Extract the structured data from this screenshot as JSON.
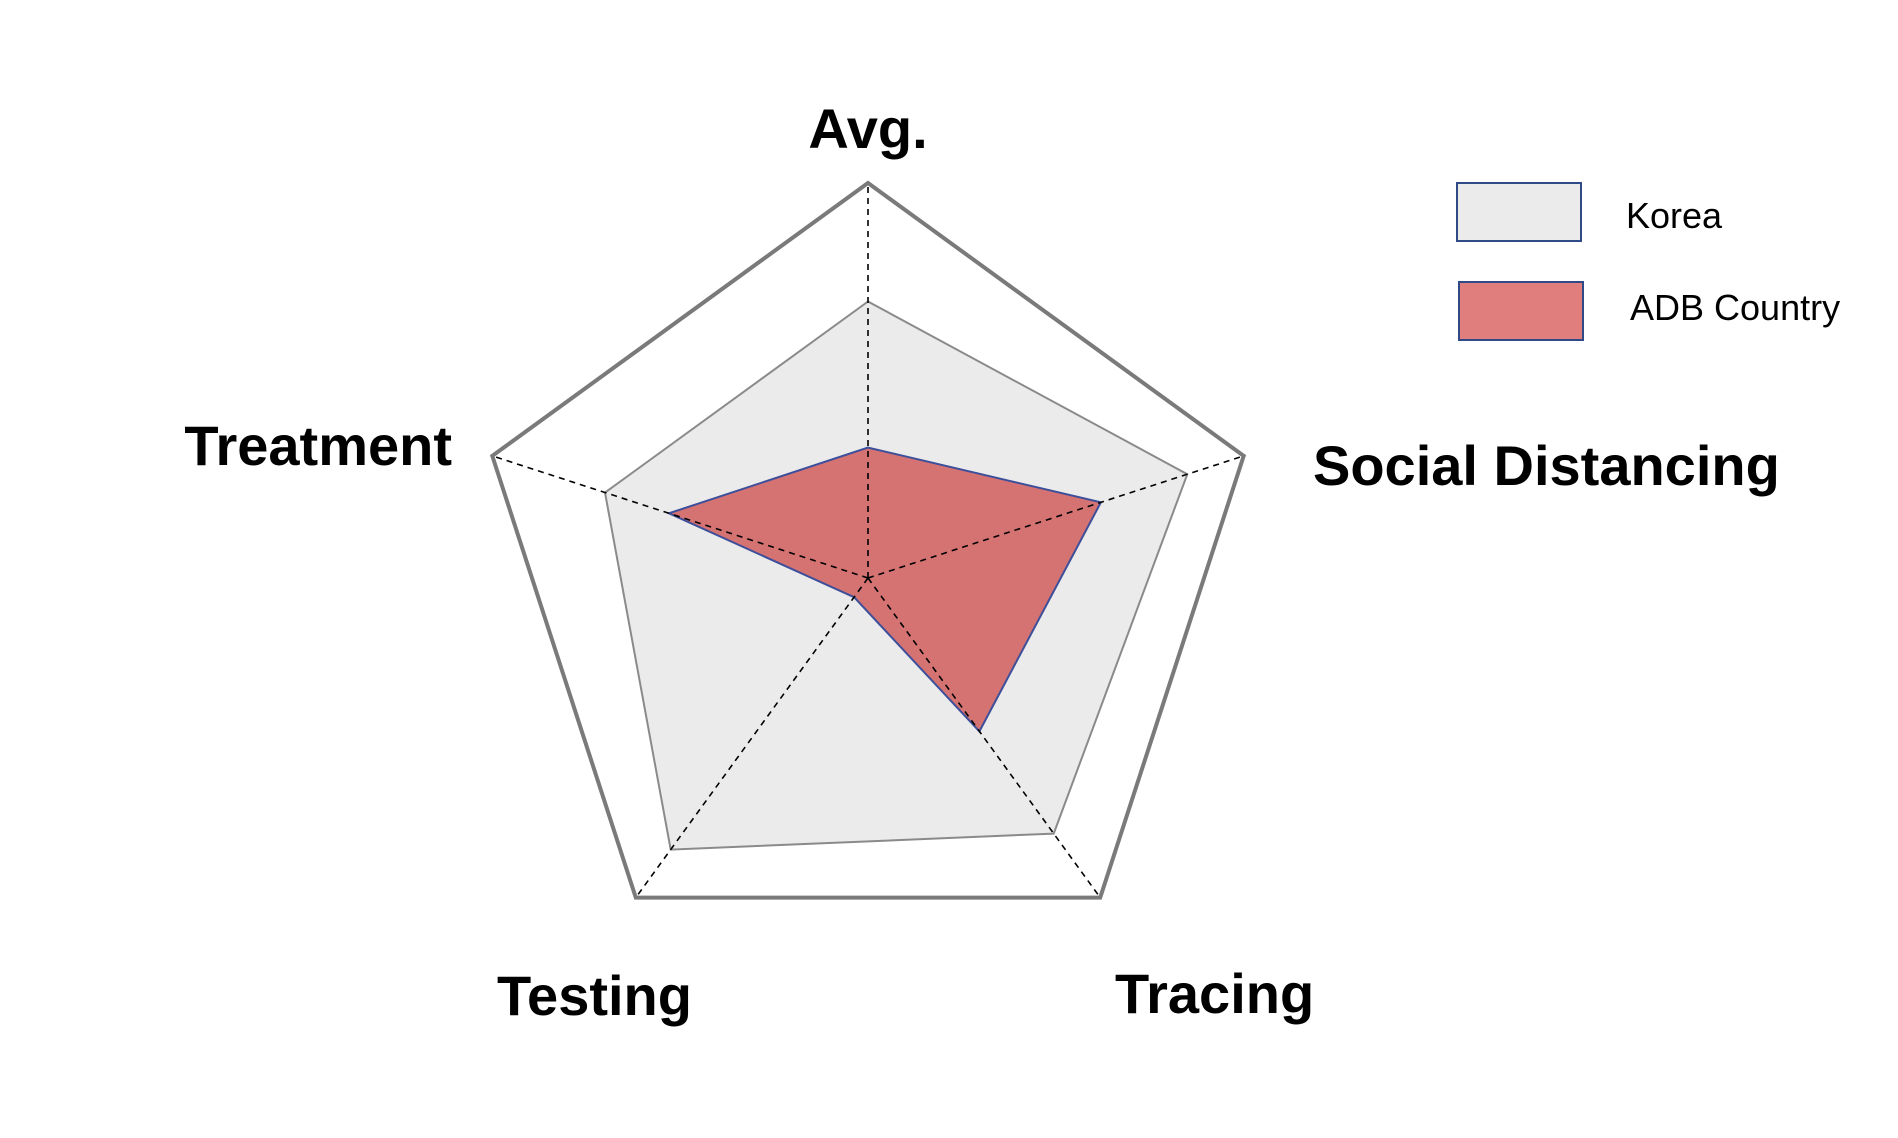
{
  "chart_data": {
    "type": "radar",
    "axes": [
      "Avg.",
      "Social Distancing",
      "Tracing",
      "Testing",
      "Treatment"
    ],
    "range": [
      0,
      1
    ],
    "series": [
      {
        "name": "Korea",
        "values": [
          0.7,
          0.85,
          0.8,
          0.85,
          0.7
        ],
        "fill": "#ebebeb",
        "stroke": "#8a8a8a"
      },
      {
        "name": "ADB Country",
        "values": [
          0.33,
          0.62,
          0.48,
          0.06,
          0.53
        ],
        "fill": "#d57272",
        "stroke": "#3d4f9a"
      }
    ],
    "legend": [
      {
        "label": "Korea",
        "fill": "#ebebeb",
        "stroke": "#2f4a86"
      },
      {
        "label": "ADB Country",
        "fill": "#e07d7d",
        "stroke": "#2f4a86"
      }
    ],
    "legend_position": "top-right",
    "grid": "outer pentagon with dashed spokes"
  }
}
